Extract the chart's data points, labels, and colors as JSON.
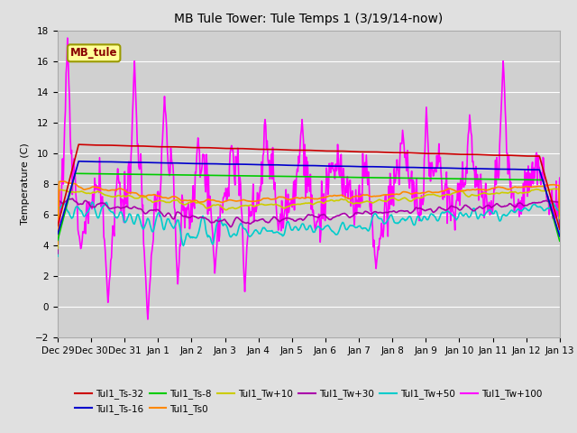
{
  "title": "MB Tule Tower: Tule Temps 1 (3/19/14-now)",
  "ylabel": "Temperature (C)",
  "ylim": [
    -2,
    18
  ],
  "yticks": [
    -2,
    0,
    2,
    4,
    6,
    8,
    10,
    12,
    14,
    16,
    18
  ],
  "x_labels": [
    "Dec 29",
    "Dec 30",
    "Dec 31",
    "Jan 1",
    "Jan 2",
    "Jan 3",
    "Jan 4",
    "Jan 5",
    "Jan 6",
    "Jan 7",
    "Jan 8",
    "Jan 9",
    "Jan 10",
    "Jan 11",
    "Jan 12",
    "Jan 13"
  ],
  "background_color": "#e0e0e0",
  "plot_bg": "#d0d0d0",
  "grid_color": "#ffffff",
  "series": {
    "Tul1_Ts-32": {
      "color": "#cc0000",
      "lw": 1.2,
      "zorder": 5
    },
    "Tul1_Ts-16": {
      "color": "#0000cc",
      "lw": 1.2,
      "zorder": 5
    },
    "Tul1_Ts-8": {
      "color": "#00cc00",
      "lw": 1.2,
      "zorder": 5
    },
    "Tul1_Ts0": {
      "color": "#ff8800",
      "lw": 1.2,
      "zorder": 4
    },
    "Tul1_Tw+10": {
      "color": "#cccc00",
      "lw": 1.2,
      "zorder": 4
    },
    "Tul1_Tw+30": {
      "color": "#aa00aa",
      "lw": 1.2,
      "zorder": 4
    },
    "Tul1_Tw+50": {
      "color": "#00cccc",
      "lw": 1.2,
      "zorder": 4
    },
    "Tul1_Tw+100": {
      "color": "#ff00ff",
      "lw": 1.2,
      "zorder": 3
    }
  },
  "legend_label": "MB_tule",
  "legend_bg": "#ffff99",
  "legend_border": "#999900",
  "title_fontsize": 10,
  "axis_fontsize": 8,
  "tick_fontsize": 7.5
}
